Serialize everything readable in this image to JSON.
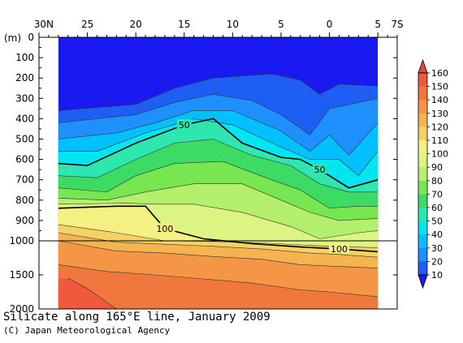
{
  "chart_data": {
    "type": "contour",
    "title": "Silicate along 165°E line, January 2009",
    "credit": "(C) Japan Meteorological Agency",
    "ylabel": "(m)",
    "x_ticks": [
      {
        "label": "30N",
        "value": 30
      },
      {
        "label": "25",
        "value": 25
      },
      {
        "label": "20",
        "value": 20
      },
      {
        "label": "15",
        "value": 15
      },
      {
        "label": "10",
        "value": 10
      },
      {
        "label": "5",
        "value": 5
      },
      {
        "label": "0",
        "value": 0
      },
      {
        "label": "5",
        "value": -5
      },
      {
        "label": "7S",
        "value": -7
      }
    ],
    "xlim": [
      30,
      -7
    ],
    "data_x_range": [
      28,
      -5
    ],
    "y_ticks": [
      0,
      100,
      200,
      300,
      400,
      500,
      600,
      700,
      800,
      900,
      1000,
      1500,
      2000
    ],
    "ylim": [
      0,
      2000
    ],
    "y_scale_break": 1000,
    "colorbar": {
      "levels": [
        10,
        20,
        30,
        40,
        50,
        60,
        70,
        80,
        90,
        100,
        110,
        120,
        130,
        140,
        150,
        160
      ],
      "colors": [
        "#1a1af0",
        "#1e5ef5",
        "#1e90ff",
        "#00c0ff",
        "#00e6f0",
        "#2ee6b0",
        "#3cdc64",
        "#78e650",
        "#b4f06e",
        "#dcf582",
        "#f5f082",
        "#f5d264",
        "#f5b450",
        "#f59646",
        "#f0783c",
        "#f05a3c",
        "#e6463c"
      ]
    },
    "labeled_contours": [
      {
        "value": 50,
        "label": "50",
        "line": [
          [
            28,
            620
          ],
          [
            25,
            630
          ],
          [
            20,
            520
          ],
          [
            15,
            430
          ],
          [
            12,
            400
          ],
          [
            9,
            520
          ],
          [
            5,
            590
          ],
          [
            3,
            600
          ],
          [
            1,
            650
          ],
          [
            -2,
            740
          ],
          [
            -5,
            700
          ]
        ]
      },
      {
        "value": 100,
        "label": "100",
        "line": [
          [
            28,
            840
          ],
          [
            22,
            830
          ],
          [
            19,
            830
          ],
          [
            17,
            940
          ],
          [
            13,
            990
          ],
          [
            8,
            1040
          ],
          [
            3,
            1090
          ],
          [
            -1,
            1120
          ],
          [
            -5,
            1160
          ]
        ]
      }
    ],
    "contours": [
      {
        "value": 10,
        "line": [
          [
            28,
            360
          ],
          [
            20,
            330
          ],
          [
            16,
            250
          ],
          [
            12,
            200
          ],
          [
            6,
            180
          ],
          [
            3,
            210
          ],
          [
            1,
            280
          ],
          [
            -1,
            230
          ],
          [
            -5,
            240
          ]
        ]
      },
      {
        "value": 20,
        "line": [
          [
            28,
            420
          ],
          [
            20,
            380
          ],
          [
            16,
            320
          ],
          [
            12,
            280
          ],
          [
            8,
            310
          ],
          [
            5,
            380
          ],
          [
            2,
            480
          ],
          [
            0,
            350
          ],
          [
            -5,
            300
          ]
        ]
      },
      {
        "value": 30,
        "line": [
          [
            28,
            500
          ],
          [
            22,
            470
          ],
          [
            18,
            420
          ],
          [
            14,
            360
          ],
          [
            10,
            360
          ],
          [
            5,
            460
          ],
          [
            2,
            560
          ],
          [
            0,
            480
          ],
          [
            -2,
            580
          ],
          [
            -5,
            420
          ]
        ]
      },
      {
        "value": 40,
        "line": [
          [
            28,
            560
          ],
          [
            24,
            560
          ],
          [
            19,
            470
          ],
          [
            14,
            400
          ],
          [
            10,
            430
          ],
          [
            5,
            540
          ],
          [
            2,
            600
          ],
          [
            -1,
            600
          ],
          [
            -3,
            680
          ],
          [
            -5,
            560
          ]
        ]
      },
      {
        "value": 60,
        "line": [
          [
            28,
            680
          ],
          [
            24,
            690
          ],
          [
            20,
            600
          ],
          [
            16,
            520
          ],
          [
            12,
            500
          ],
          [
            8,
            580
          ],
          [
            4,
            630
          ],
          [
            1,
            720
          ],
          [
            -2,
            760
          ],
          [
            -5,
            760
          ]
        ]
      },
      {
        "value": 70,
        "line": [
          [
            28,
            740
          ],
          [
            23,
            760
          ],
          [
            20,
            680
          ],
          [
            16,
            620
          ],
          [
            11,
            610
          ],
          [
            6,
            700
          ],
          [
            3,
            750
          ],
          [
            0,
            840
          ],
          [
            -3,
            830
          ],
          [
            -5,
            830
          ]
        ]
      },
      {
        "value": 80,
        "line": [
          [
            28,
            790
          ],
          [
            23,
            800
          ],
          [
            19,
            760
          ],
          [
            14,
            720
          ],
          [
            9,
            720
          ],
          [
            5,
            800
          ],
          [
            2,
            860
          ],
          [
            -1,
            900
          ],
          [
            -5,
            890
          ]
        ]
      },
      {
        "value": 90,
        "line": [
          [
            28,
            820
          ],
          [
            21,
            815
          ],
          [
            18,
            820
          ],
          [
            14,
            820
          ],
          [
            9,
            860
          ],
          [
            4,
            930
          ],
          [
            1,
            990
          ],
          [
            -3,
            960
          ],
          [
            -5,
            950
          ]
        ]
      },
      {
        "value": 110,
        "line": [
          [
            28,
            920
          ],
          [
            22,
            960
          ],
          [
            17,
            1000
          ],
          [
            12,
            1010
          ],
          [
            7,
            1030
          ],
          [
            3,
            1060
          ],
          [
            0,
            1080
          ],
          [
            -5,
            1100
          ]
        ]
      },
      {
        "value": 120,
        "line": [
          [
            28,
            960
          ],
          [
            22,
            1020
          ],
          [
            17,
            1050
          ],
          [
            12,
            1080
          ],
          [
            7,
            1120
          ],
          [
            2,
            1180
          ],
          [
            -1,
            1200
          ],
          [
            -5,
            1240
          ]
        ]
      },
      {
        "value": 130,
        "line": [
          [
            28,
            1000
          ],
          [
            22,
            1150
          ],
          [
            17,
            1180
          ],
          [
            12,
            1230
          ],
          [
            7,
            1270
          ],
          [
            3,
            1350
          ],
          [
            0,
            1370
          ],
          [
            -5,
            1400
          ]
        ]
      },
      {
        "value": 140,
        "line": [
          [
            28,
            1350
          ],
          [
            23,
            1450
          ],
          [
            18,
            1500
          ],
          [
            13,
            1560
          ],
          [
            8,
            1620
          ],
          [
            3,
            1720
          ],
          [
            0,
            1750
          ],
          [
            -5,
            1820
          ]
        ]
      },
      {
        "value": 150,
        "line": [
          [
            27,
            1550
          ],
          [
            25,
            1700
          ],
          [
            23,
            1900
          ],
          [
            22,
            2000
          ]
        ]
      }
    ]
  }
}
